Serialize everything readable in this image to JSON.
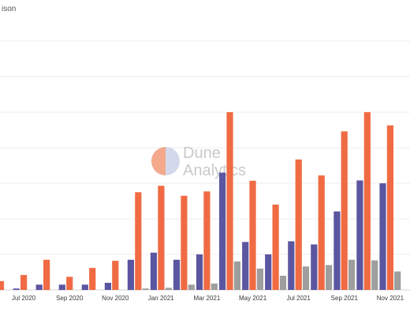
{
  "chart_data": {
    "type": "bar",
    "title": "ison",
    "xlabel": "",
    "ylabel": "",
    "ylim": [
      0,
      7
    ],
    "grid": true,
    "categories": [
      "Jun 2020",
      "Jul 2020",
      "Aug 2020",
      "Sep 2020",
      "Oct 2020",
      "Nov 2020",
      "Dec 2020",
      "Jan 2021",
      "Feb 2021",
      "Mar 2021",
      "Apr 2021",
      "May 2021",
      "Jun 2021",
      "Jul 2021",
      "Aug 2021",
      "Sep 2021",
      "Oct 2021",
      "Nov 2021",
      "Dec 2021"
    ],
    "tick_labels": [
      "Jul 2020",
      "Sep 2020",
      "Nov 2020",
      "Jan 2021",
      "Mar 2021",
      "May 2021",
      "Jul 2021",
      "Sep 2021",
      "Nov 2021"
    ],
    "series": [
      {
        "color": "#5b56a0",
        "values": [
          0,
          0.04,
          0.15,
          0.15,
          0.15,
          0.2,
          0.85,
          1.05,
          0.85,
          1.0,
          3.3,
          1.35,
          1.0,
          1.37,
          1.28,
          2.21,
          3.08,
          3.0,
          0
        ]
      },
      {
        "color": "#f06b43",
        "values": [
          0.25,
          0.42,
          0.85,
          0.37,
          0.62,
          0.82,
          2.75,
          2.93,
          2.65,
          2.77,
          5.0,
          3.07,
          2.4,
          3.67,
          3.22,
          4.46,
          5.0,
          4.63,
          0
        ]
      },
      {
        "color": "#9e9e9e",
        "values": [
          0,
          0,
          0,
          0,
          0,
          0,
          0.04,
          0.06,
          0.15,
          0.18,
          0.8,
          0.6,
          0.4,
          0.66,
          0.7,
          0.85,
          0.83,
          0.52,
          0.6
        ]
      }
    ]
  },
  "watermark": {
    "line1": "Dune",
    "line2": "Analytics",
    "colors": {
      "left": "#f3a080",
      "right": "#cfd4e8"
    }
  }
}
